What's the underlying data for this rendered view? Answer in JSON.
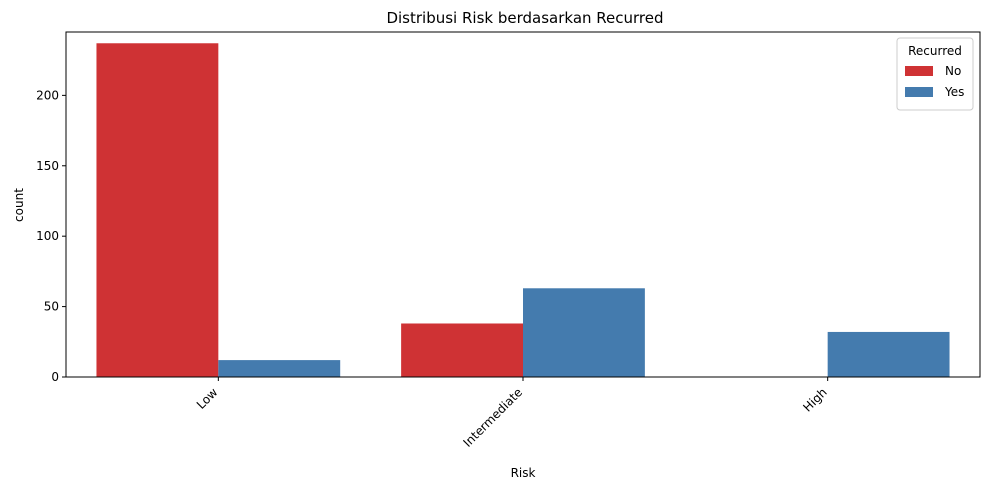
{
  "chart_data": {
    "type": "bar",
    "title": "Distribusi Risk berdasarkan Recurred",
    "xlabel": "Risk",
    "ylabel": "count",
    "categories": [
      "Low",
      "Intermediate",
      "High"
    ],
    "series": [
      {
        "name": "No",
        "values": [
          237,
          38,
          0
        ],
        "color": "#cf3234"
      },
      {
        "name": "Yes",
        "values": [
          12,
          63,
          32
        ],
        "color": "#447bae"
      }
    ],
    "ylim": [
      0,
      245
    ],
    "yticks": [
      0,
      50,
      100,
      150,
      200
    ],
    "grid": false,
    "legend": {
      "title": "Recurred",
      "placement": "top-right"
    }
  }
}
